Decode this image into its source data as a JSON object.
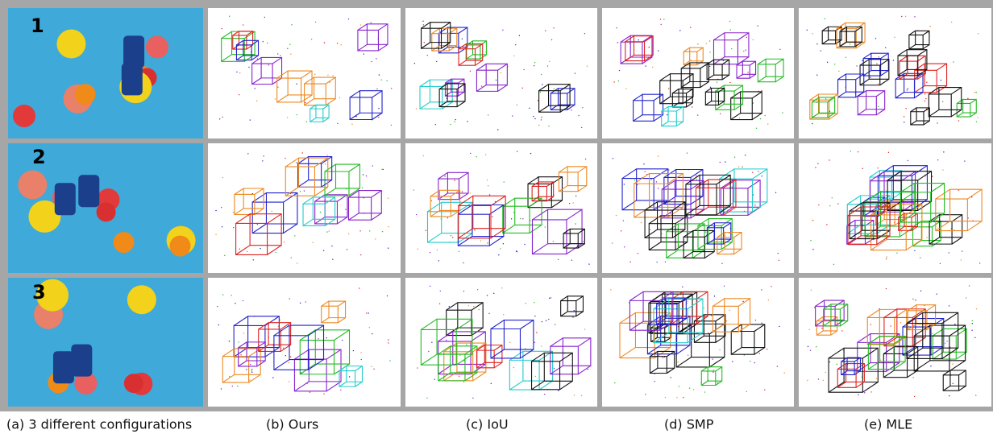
{
  "figure": {
    "row_labels": [
      "1",
      "2",
      "3"
    ],
    "captions": [
      "(a) 3 different configurations",
      "(b) Ours",
      "(c) IoU",
      "(d) SMP",
      "(e) MLE"
    ]
  }
}
